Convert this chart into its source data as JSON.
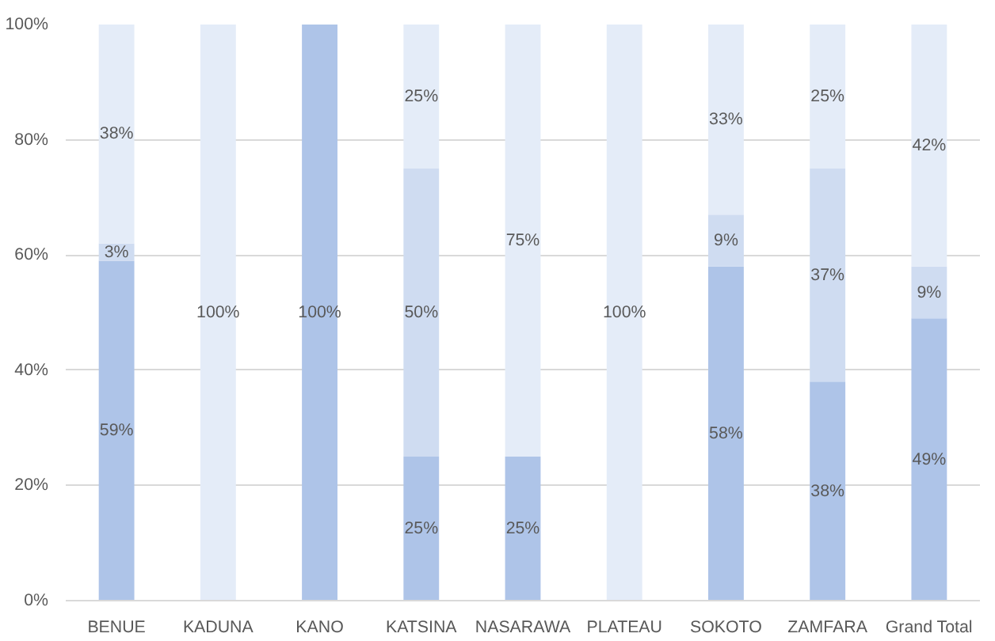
{
  "chart_data": {
    "type": "bar",
    "stacked": true,
    "categories": [
      "BENUE",
      "KADUNA",
      "KANO",
      "KATSINA",
      "NASARAWA",
      "PLATEAU",
      "SOKOTO",
      "ZAMFARA",
      "Grand Total"
    ],
    "series": [
      {
        "color": "#aec4e8",
        "values": [
          59,
          0,
          100,
          25,
          25,
          0,
          58,
          38,
          49
        ],
        "value_labels": [
          "59%",
          null,
          "100%",
          "25%",
          "25%",
          null,
          "58%",
          "38%",
          "49%"
        ]
      },
      {
        "color": "#cfdcf1",
        "values": [
          3,
          0,
          0,
          50,
          0,
          0,
          9,
          37,
          9
        ],
        "value_labels": [
          "3%",
          null,
          null,
          "50%",
          null,
          null,
          "9%",
          "37%",
          "9%"
        ]
      },
      {
        "color": "#e4ecf8",
        "values": [
          38,
          100,
          0,
          25,
          75,
          100,
          33,
          25,
          42
        ],
        "value_labels": [
          "38%",
          "100%",
          null,
          "25%",
          "75%",
          "100%",
          "33%",
          "25%",
          "42%"
        ]
      }
    ],
    "ylim": [
      0,
      100
    ],
    "yticks": [
      {
        "value": 0,
        "label": "0%"
      },
      {
        "value": 20,
        "label": "20%"
      },
      {
        "value": 40,
        "label": "40%"
      },
      {
        "value": 60,
        "label": "60%"
      },
      {
        "value": 80,
        "label": "80%"
      },
      {
        "value": 100,
        "label": "100%"
      }
    ],
    "grid": "y"
  }
}
